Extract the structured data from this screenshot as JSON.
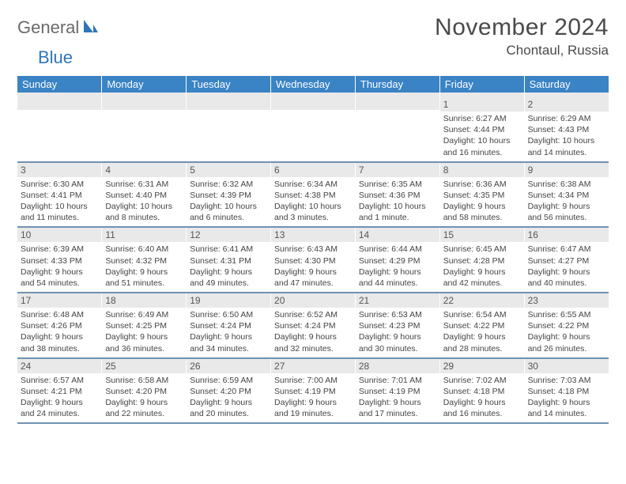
{
  "brand": {
    "word1": "General",
    "word2": "Blue"
  },
  "title": "November 2024",
  "location": "Chontaul, Russia",
  "colors": {
    "header_bg": "#3a83c5",
    "header_text": "#ffffff",
    "row_divider": "#6f91b3",
    "daynum_bg": "#e9e9e9",
    "text": "#444444",
    "logo_gray": "#6a6a6a",
    "logo_blue": "#2f76b8"
  },
  "weekdays": [
    "Sunday",
    "Monday",
    "Tuesday",
    "Wednesday",
    "Thursday",
    "Friday",
    "Saturday"
  ],
  "weeks": [
    [
      {
        "n": "",
        "sr": "",
        "ss": "",
        "dl": ""
      },
      {
        "n": "",
        "sr": "",
        "ss": "",
        "dl": ""
      },
      {
        "n": "",
        "sr": "",
        "ss": "",
        "dl": ""
      },
      {
        "n": "",
        "sr": "",
        "ss": "",
        "dl": ""
      },
      {
        "n": "",
        "sr": "",
        "ss": "",
        "dl": ""
      },
      {
        "n": "1",
        "sr": "Sunrise: 6:27 AM",
        "ss": "Sunset: 4:44 PM",
        "dl": "Daylight: 10 hours and 16 minutes."
      },
      {
        "n": "2",
        "sr": "Sunrise: 6:29 AM",
        "ss": "Sunset: 4:43 PM",
        "dl": "Daylight: 10 hours and 14 minutes."
      }
    ],
    [
      {
        "n": "3",
        "sr": "Sunrise: 6:30 AM",
        "ss": "Sunset: 4:41 PM",
        "dl": "Daylight: 10 hours and 11 minutes."
      },
      {
        "n": "4",
        "sr": "Sunrise: 6:31 AM",
        "ss": "Sunset: 4:40 PM",
        "dl": "Daylight: 10 hours and 8 minutes."
      },
      {
        "n": "5",
        "sr": "Sunrise: 6:32 AM",
        "ss": "Sunset: 4:39 PM",
        "dl": "Daylight: 10 hours and 6 minutes."
      },
      {
        "n": "6",
        "sr": "Sunrise: 6:34 AM",
        "ss": "Sunset: 4:38 PM",
        "dl": "Daylight: 10 hours and 3 minutes."
      },
      {
        "n": "7",
        "sr": "Sunrise: 6:35 AM",
        "ss": "Sunset: 4:36 PM",
        "dl": "Daylight: 10 hours and 1 minute."
      },
      {
        "n": "8",
        "sr": "Sunrise: 6:36 AM",
        "ss": "Sunset: 4:35 PM",
        "dl": "Daylight: 9 hours and 58 minutes."
      },
      {
        "n": "9",
        "sr": "Sunrise: 6:38 AM",
        "ss": "Sunset: 4:34 PM",
        "dl": "Daylight: 9 hours and 56 minutes."
      }
    ],
    [
      {
        "n": "10",
        "sr": "Sunrise: 6:39 AM",
        "ss": "Sunset: 4:33 PM",
        "dl": "Daylight: 9 hours and 54 minutes."
      },
      {
        "n": "11",
        "sr": "Sunrise: 6:40 AM",
        "ss": "Sunset: 4:32 PM",
        "dl": "Daylight: 9 hours and 51 minutes."
      },
      {
        "n": "12",
        "sr": "Sunrise: 6:41 AM",
        "ss": "Sunset: 4:31 PM",
        "dl": "Daylight: 9 hours and 49 minutes."
      },
      {
        "n": "13",
        "sr": "Sunrise: 6:43 AM",
        "ss": "Sunset: 4:30 PM",
        "dl": "Daylight: 9 hours and 47 minutes."
      },
      {
        "n": "14",
        "sr": "Sunrise: 6:44 AM",
        "ss": "Sunset: 4:29 PM",
        "dl": "Daylight: 9 hours and 44 minutes."
      },
      {
        "n": "15",
        "sr": "Sunrise: 6:45 AM",
        "ss": "Sunset: 4:28 PM",
        "dl": "Daylight: 9 hours and 42 minutes."
      },
      {
        "n": "16",
        "sr": "Sunrise: 6:47 AM",
        "ss": "Sunset: 4:27 PM",
        "dl": "Daylight: 9 hours and 40 minutes."
      }
    ],
    [
      {
        "n": "17",
        "sr": "Sunrise: 6:48 AM",
        "ss": "Sunset: 4:26 PM",
        "dl": "Daylight: 9 hours and 38 minutes."
      },
      {
        "n": "18",
        "sr": "Sunrise: 6:49 AM",
        "ss": "Sunset: 4:25 PM",
        "dl": "Daylight: 9 hours and 36 minutes."
      },
      {
        "n": "19",
        "sr": "Sunrise: 6:50 AM",
        "ss": "Sunset: 4:24 PM",
        "dl": "Daylight: 9 hours and 34 minutes."
      },
      {
        "n": "20",
        "sr": "Sunrise: 6:52 AM",
        "ss": "Sunset: 4:24 PM",
        "dl": "Daylight: 9 hours and 32 minutes."
      },
      {
        "n": "21",
        "sr": "Sunrise: 6:53 AM",
        "ss": "Sunset: 4:23 PM",
        "dl": "Daylight: 9 hours and 30 minutes."
      },
      {
        "n": "22",
        "sr": "Sunrise: 6:54 AM",
        "ss": "Sunset: 4:22 PM",
        "dl": "Daylight: 9 hours and 28 minutes."
      },
      {
        "n": "23",
        "sr": "Sunrise: 6:55 AM",
        "ss": "Sunset: 4:22 PM",
        "dl": "Daylight: 9 hours and 26 minutes."
      }
    ],
    [
      {
        "n": "24",
        "sr": "Sunrise: 6:57 AM",
        "ss": "Sunset: 4:21 PM",
        "dl": "Daylight: 9 hours and 24 minutes."
      },
      {
        "n": "25",
        "sr": "Sunrise: 6:58 AM",
        "ss": "Sunset: 4:20 PM",
        "dl": "Daylight: 9 hours and 22 minutes."
      },
      {
        "n": "26",
        "sr": "Sunrise: 6:59 AM",
        "ss": "Sunset: 4:20 PM",
        "dl": "Daylight: 9 hours and 20 minutes."
      },
      {
        "n": "27",
        "sr": "Sunrise: 7:00 AM",
        "ss": "Sunset: 4:19 PM",
        "dl": "Daylight: 9 hours and 19 minutes."
      },
      {
        "n": "28",
        "sr": "Sunrise: 7:01 AM",
        "ss": "Sunset: 4:19 PM",
        "dl": "Daylight: 9 hours and 17 minutes."
      },
      {
        "n": "29",
        "sr": "Sunrise: 7:02 AM",
        "ss": "Sunset: 4:18 PM",
        "dl": "Daylight: 9 hours and 16 minutes."
      },
      {
        "n": "30",
        "sr": "Sunrise: 7:03 AM",
        "ss": "Sunset: 4:18 PM",
        "dl": "Daylight: 9 hours and 14 minutes."
      }
    ]
  ]
}
